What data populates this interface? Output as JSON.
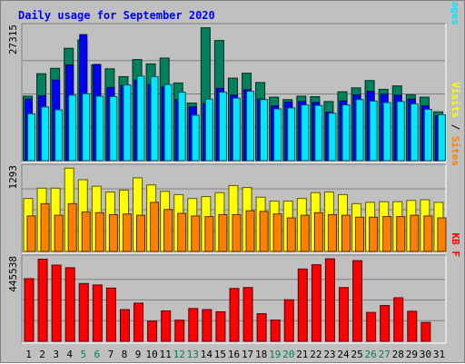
{
  "chart_data": {
    "type": "bar",
    "title": "Daily usage for September 2020",
    "categories": [
      "1",
      "2",
      "3",
      "4",
      "5",
      "6",
      "7",
      "8",
      "9",
      "10",
      "11",
      "12",
      "13",
      "14",
      "15",
      "16",
      "17",
      "18",
      "19",
      "20",
      "21",
      "22",
      "23",
      "24",
      "25",
      "26",
      "27",
      "28",
      "29",
      "30",
      "31"
    ],
    "weekend_days": [
      "5",
      "6",
      "12",
      "13",
      "19",
      "20",
      "26",
      "27"
    ],
    "panels": [
      {
        "name": "hits-files-pages",
        "max_label": "27315",
        "ylim": [
          0,
          27315
        ],
        "legend": [
          "Pages",
          "Files",
          "Hits"
        ],
        "series": [
          {
            "name": "Hits",
            "color": "#00805c",
            "values": [
              13200,
              17800,
              18900,
              23000,
              24700,
              19600,
              18800,
              17200,
              20700,
              19800,
              21000,
              15900,
              11800,
              27200,
              24600,
              16900,
              17900,
              16000,
              13000,
              12500,
              13200,
              13100,
              12100,
              14100,
              14900,
              16400,
              14600,
              15300,
              13500,
              13000,
              10000
            ]
          },
          {
            "name": "Files",
            "color": "#0000ff",
            "values": [
              12600,
              13300,
              16500,
              19600,
              25800,
              19700,
              15000,
              15400,
              16500,
              15600,
              15100,
              12500,
              11000,
              11700,
              14800,
              13400,
              14500,
              12600,
              11200,
              12000,
              12100,
              11900,
              9900,
              12200,
              13500,
              14200,
              13600,
              13400,
              12600,
              11200,
              9200
            ]
          },
          {
            "name": "Pages",
            "color": "#00e8ff",
            "values": [
              9600,
              11000,
              10400,
              13400,
              13700,
              13200,
              13100,
              15500,
              17300,
              17200,
              15600,
              14000,
              9300,
              12600,
              14000,
              12800,
              14200,
              12500,
              10600,
              10800,
              11400,
              11300,
              9700,
              11400,
              12500,
              12200,
              11900,
              12100,
              11600,
              10500,
              9400
            ]
          }
        ]
      },
      {
        "name": "visits-sites",
        "max_label": "1293",
        "ylim": [
          0,
          1293
        ],
        "legend": [
          "Sites",
          "Visits"
        ],
        "series": [
          {
            "name": "Visits",
            "color": "#ffff00",
            "values": [
              820,
              980,
              980,
              1290,
              1110,
              1010,
              920,
              950,
              1140,
              1030,
              930,
              880,
              820,
              850,
              910,
              1020,
              990,
              840,
              780,
              780,
              820,
              910,
              920,
              880,
              740,
              760,
              770,
              770,
              790,
              800,
              760
            ]
          },
          {
            "name": "Sites",
            "color": "#ff8000",
            "values": [
              550,
              740,
              560,
              740,
              610,
              600,
              570,
              580,
              560,
              760,
              650,
              590,
              550,
              540,
              570,
              570,
              630,
              620,
              580,
              520,
              560,
              600,
              570,
              560,
              530,
              530,
              540,
              540,
              560,
              550,
              520
            ]
          }
        ]
      },
      {
        "name": "kbytes",
        "max_label": "445538",
        "ylim": [
          0,
          445538
        ],
        "legend": [
          "KB F"
        ],
        "series": [
          {
            "name": "KB F",
            "color": "#ff0000",
            "values": [
              338000,
              443000,
              411000,
              397000,
              312000,
              304000,
              287000,
              171000,
              206000,
              109000,
              164000,
              114000,
              177000,
              171000,
              159000,
              285000,
              290000,
              149000,
              115000,
              224000,
              390000,
              413000,
              445000,
              290000,
              435000,
              156000,
              193000,
              235000,
              162000,
              102000,
              0
            ]
          }
        ]
      }
    ]
  }
}
